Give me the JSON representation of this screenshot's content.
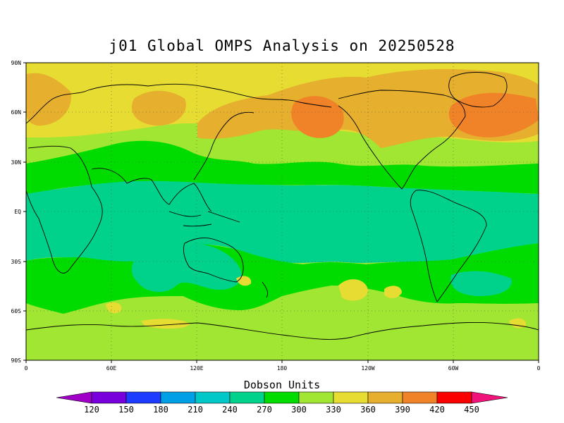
{
  "title": "j01 Global OMPS Analysis on 20250528",
  "lat_labels": [
    "90N",
    "60N",
    "30N",
    "EQ",
    "30S",
    "60S",
    "90S"
  ],
  "lon_labels": [
    "0",
    "60E",
    "120E",
    "180",
    "120W",
    "60W",
    "0"
  ],
  "colorbar": {
    "title": "Dobson Units",
    "levels": [
      "120",
      "150",
      "180",
      "210",
      "240",
      "270",
      "300",
      "330",
      "360",
      "390",
      "420",
      "450"
    ],
    "colors": [
      "#a000c8",
      "#7800dc",
      "#1e3cff",
      "#00a0e6",
      "#00c8c8",
      "#00d28c",
      "#00dc00",
      "#a0e632",
      "#e6dc32",
      "#e6af2d",
      "#f08228",
      "#fa0000",
      "#f0147a"
    ]
  },
  "zones": {
    "yellow": "#e6dc32",
    "orange": "#e6af2d",
    "dark_orange": "#f08228",
    "light_green": "#a0e632",
    "green": "#00dc00",
    "teal": "#00d28c"
  }
}
